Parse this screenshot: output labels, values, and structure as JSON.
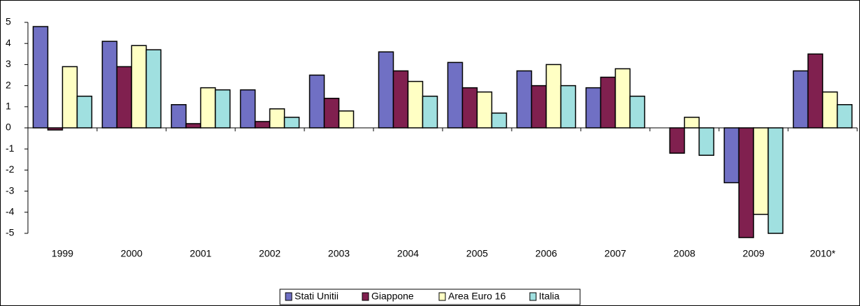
{
  "chart_data": {
    "type": "bar",
    "categories": [
      "1999",
      "2000",
      "2001",
      "2002",
      "2003",
      "2004",
      "2005",
      "2006",
      "2007",
      "2008",
      "2009",
      "2010*"
    ],
    "series": [
      {
        "name": "Stati Unitii",
        "color": "#7070c4",
        "values": [
          4.8,
          4.1,
          1.1,
          1.8,
          2.5,
          3.6,
          3.1,
          2.7,
          1.9,
          0,
          -2.6,
          2.7
        ]
      },
      {
        "name": "Giappone",
        "color": "#80204f",
        "values": [
          -0.1,
          2.9,
          0.2,
          0.3,
          1.4,
          2.7,
          1.9,
          2.0,
          2.4,
          -1.2,
          -5.2,
          3.5
        ]
      },
      {
        "name": "Area Euro 16",
        "color": "#ffffc4",
        "values": [
          2.9,
          3.9,
          1.9,
          0.9,
          0.8,
          2.2,
          1.7,
          3.0,
          2.8,
          0.5,
          -4.1,
          1.7
        ]
      },
      {
        "name": "Italia",
        "color": "#a0e0e0",
        "values": [
          1.5,
          3.7,
          1.8,
          0.5,
          0,
          1.5,
          0.7,
          2.0,
          1.5,
          -1.3,
          -5.0,
          1.1
        ]
      }
    ],
    "ylim": [
      -5,
      5
    ],
    "yticks": [
      -5,
      -4,
      -3,
      -2,
      -1,
      0,
      1,
      2,
      3,
      4,
      5
    ],
    "grid": false,
    "legend": "bottom"
  }
}
